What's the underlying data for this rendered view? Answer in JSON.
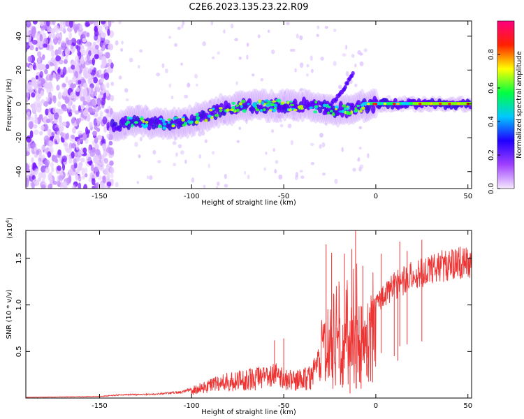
{
  "title": "C2E6.2023.135.23.22.R09",
  "chart_data": [
    {
      "type": "heatmap",
      "xlabel": "Height of straight line (km)",
      "ylabel": "Frequency (Hz)",
      "xlim": [
        -190,
        52
      ],
      "ylim": [
        -50,
        49
      ],
      "x_ticks": [
        -150,
        -100,
        -50,
        0,
        50
      ],
      "y_ticks": [
        -40,
        -20,
        0,
        20,
        40
      ],
      "colorbar": {
        "label": "Normalized spectral amplitude",
        "range": [
          0,
          1
        ],
        "ticks": [
          "0.0",
          "0.2",
          "0.4",
          "0.6",
          "0.8"
        ],
        "colors": [
          "#f5e8ff",
          "#a040ff",
          "#2000ff",
          "#00c8ff",
          "#00ff40",
          "#ffff00",
          "#ff2000",
          "#ff0080"
        ]
      },
      "ridge": [
        {
          "x": -143,
          "y": -13
        },
        {
          "x": -130,
          "y": -10
        },
        {
          "x": -115,
          "y": -12
        },
        {
          "x": -100,
          "y": -10
        },
        {
          "x": -85,
          "y": -4
        },
        {
          "x": -70,
          "y": -1
        },
        {
          "x": -55,
          "y": -1
        },
        {
          "x": -40,
          "y": -1
        },
        {
          "x": -30,
          "y": -2
        },
        {
          "x": -20,
          "y": -4
        },
        {
          "x": -10,
          "y": -2
        },
        {
          "x": 0,
          "y": 0
        },
        {
          "x": 20,
          "y": 0
        },
        {
          "x": 52,
          "y": 0
        }
      ],
      "branch": [
        {
          "x": -28,
          "y": -5
        },
        {
          "x": -20,
          "y": 5
        },
        {
          "x": -15,
          "y": 13
        },
        {
          "x": -12,
          "y": 19
        }
      ]
    },
    {
      "type": "line",
      "xlabel": "Height of straight line (km)",
      "ylabel": "SNR (10 * v/v)",
      "scale_label": "(x10",
      "scale_exp": "4",
      "xlim": [
        -190,
        52
      ],
      "ylim": [
        0,
        1.8
      ],
      "x_ticks": [
        -150,
        -100,
        -50,
        0,
        50
      ],
      "y_ticks": [
        0.5,
        1.0,
        1.5
      ],
      "y_tick_labels": [
        "0.5",
        "1.0",
        "1.5"
      ],
      "color": "#ee3333",
      "envelope": [
        {
          "x": -190,
          "y": 0.01
        },
        {
          "x": -150,
          "y": 0.02
        },
        {
          "x": -140,
          "y": 0.04
        },
        {
          "x": -120,
          "y": 0.05
        },
        {
          "x": -105,
          "y": 0.08
        },
        {
          "x": -100,
          "y": 0.12
        },
        {
          "x": -90,
          "y": 0.22
        },
        {
          "x": -80,
          "y": 0.28
        },
        {
          "x": -65,
          "y": 0.33
        },
        {
          "x": -55,
          "y": 0.38
        },
        {
          "x": -45,
          "y": 0.3
        },
        {
          "x": -35,
          "y": 0.35
        },
        {
          "x": -28,
          "y": 0.7
        },
        {
          "x": -22,
          "y": 0.8
        },
        {
          "x": -15,
          "y": 0.8
        },
        {
          "x": -10,
          "y": 0.95
        },
        {
          "x": -5,
          "y": 1.05
        },
        {
          "x": 0,
          "y": 1.15
        },
        {
          "x": 5,
          "y": 1.25
        },
        {
          "x": 10,
          "y": 1.35
        },
        {
          "x": 20,
          "y": 1.48
        },
        {
          "x": 30,
          "y": 1.56
        },
        {
          "x": 40,
          "y": 1.61
        },
        {
          "x": 52,
          "y": 1.65
        }
      ],
      "spikes": [
        {
          "x": -55,
          "y": 0.62
        },
        {
          "x": -50,
          "y": 0.64
        },
        {
          "x": -27,
          "y": 1.65
        },
        {
          "x": -24,
          "y": 1.56
        },
        {
          "x": -20,
          "y": 1.25
        },
        {
          "x": -17,
          "y": 1.55
        },
        {
          "x": -13,
          "y": 1.6
        },
        {
          "x": -11,
          "y": 1.8
        },
        {
          "x": -7,
          "y": 1.42
        },
        {
          "x": 3,
          "y": 1.55
        },
        {
          "x": 13,
          "y": 1.68
        },
        {
          "x": 17,
          "y": 1.58
        },
        {
          "x": 25,
          "y": 1.7
        }
      ],
      "dips": [
        {
          "x": -14,
          "y": 0.05
        },
        {
          "x": -8,
          "y": 0.1
        },
        {
          "x": 10,
          "y": 0.45
        },
        {
          "x": 12,
          "y": 0.4
        }
      ]
    }
  ]
}
